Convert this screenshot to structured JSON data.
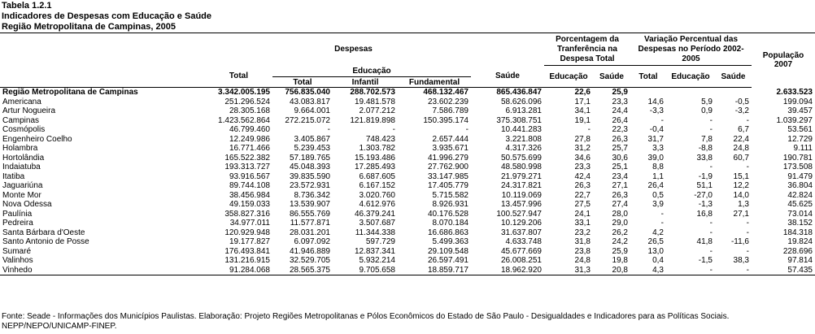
{
  "title": {
    "line1": "Tabela 1.2.1",
    "line2": "Indicadores de Despesas com Educação e Saúde",
    "line3": "Região Metropolitana de Campinas, 2005"
  },
  "headers": {
    "despesas": "Despesas",
    "porcentagem": "Porcentagem da Tranferência na Despesa Total",
    "variacao": "Variação Percentual das Despesas no Período 2002-2005",
    "populacao": "População 2007",
    "total": "Total",
    "educacao": "Educação",
    "ed_total": "Total",
    "ed_infantil": "Infantil",
    "ed_fundamental": "Fundamental",
    "saude": "Saúde",
    "p_educacao": "Educação",
    "p_saude": "Saúde",
    "v_total": "Total",
    "v_educacao": "Educação",
    "v_saude": "Saúde"
  },
  "rows": [
    [
      "Região Metropolitana de Campinas",
      "3.342.005.195",
      "756.835.040",
      "288.702.573",
      "468.132.467",
      "865.436.847",
      "22,6",
      "25,9",
      "",
      "",
      "",
      "2.633.523"
    ],
    [
      "Americana",
      "251.296.524",
      "43.083.817",
      "19.481.578",
      "23.602.239",
      "58.626.096",
      "17,1",
      "23,3",
      "14,6",
      "5,9",
      "-0,5",
      "199.094"
    ],
    [
      "Artur Nogueira",
      "28.305.168",
      "9.664.001",
      "2.077.212",
      "7.586.789",
      "6.913.281",
      "34,1",
      "24,4",
      "-3,3",
      "0,9",
      "-3,2",
      "39.457"
    ],
    [
      "Campinas",
      "1.423.562.864",
      "272.215.072",
      "121.819.898",
      "150.395.174",
      "375.308.751",
      "19,1",
      "26,4",
      "-",
      "-",
      "-",
      "1.039.297"
    ],
    [
      "Cosmópolis",
      "46.799.460",
      "-",
      "-",
      "-",
      "10.441.283",
      "-",
      "22,3",
      "-0,4",
      "-",
      "6,7",
      "53.561"
    ],
    [
      "Engenheiro Coelho",
      "12.249.986",
      "3.405.867",
      "748.423",
      "2.657.444",
      "3.221.808",
      "27,8",
      "26,3",
      "31,7",
      "7,8",
      "22,4",
      "12.729"
    ],
    [
      "Holambra",
      "16.771.466",
      "5.239.453",
      "1.303.782",
      "3.935.671",
      "4.317.326",
      "31,2",
      "25,7",
      "3,3",
      "-8,8",
      "24,8",
      "9.111"
    ],
    [
      "Hortolândia",
      "165.522.382",
      "57.189.765",
      "15.193.486",
      "41.996.279",
      "50.575.699",
      "34,6",
      "30,6",
      "39,0",
      "33,8",
      "60,7",
      "190.781"
    ],
    [
      "Indaiatuba",
      "193.313.727",
      "45.048.393",
      "17.285.493",
      "27.762.900",
      "48.580.998",
      "23,3",
      "25,1",
      "8,8",
      "-",
      "-",
      "173.508"
    ],
    [
      "Itatiba",
      "93.916.567",
      "39.835.590",
      "6.687.605",
      "33.147.985",
      "21.979.271",
      "42,4",
      "23,4",
      "1,1",
      "-1,9",
      "15,1",
      "91.479"
    ],
    [
      "Jaguariúna",
      "89.744.108",
      "23.572.931",
      "6.167.152",
      "17.405.779",
      "24.317.821",
      "26,3",
      "27,1",
      "26,4",
      "51,1",
      "12,2",
      "36.804"
    ],
    [
      "Monte Mor",
      "38.456.984",
      "8.736.342",
      "3.020.760",
      "5.715.582",
      "10.119.069",
      "22,7",
      "26,3",
      "0,5",
      "-27,0",
      "14,0",
      "42.824"
    ],
    [
      "Nova Odessa",
      "49.159.033",
      "13.539.907",
      "4.612.976",
      "8.926.931",
      "13.457.996",
      "27,5",
      "27,4",
      "3,9",
      "-1,3",
      "1,3",
      "45.625"
    ],
    [
      "Paulínia",
      "358.827.316",
      "86.555.769",
      "46.379.241",
      "40.176.528",
      "100.527.947",
      "24,1",
      "28,0",
      "-",
      "16,8",
      "27,1",
      "73.014"
    ],
    [
      "Pedreira",
      "34.977.011",
      "11.577.871",
      "3.507.687",
      "8.070.184",
      "10.129.206",
      "33,1",
      "29,0",
      "-",
      "-",
      "-",
      "38.152"
    ],
    [
      "Santa Bárbara d'Oeste",
      "120.929.948",
      "28.031.201",
      "11.344.338",
      "16.686.863",
      "31.637.807",
      "23,2",
      "26,2",
      "4,2",
      "-",
      "-",
      "184.318"
    ],
    [
      "Santo Antonio de Posse",
      "19.177.827",
      "6.097.092",
      "597.729",
      "5.499.363",
      "4.633.748",
      "31,8",
      "24,2",
      "26,5",
      "41,8",
      "-11,6",
      "19.824"
    ],
    [
      "Sumaré",
      "176.493.841",
      "41.946.889",
      "12.837.341",
      "29.109.548",
      "45.677.669",
      "23,8",
      "25,9",
      "13,0",
      "-",
      "-",
      "228.696"
    ],
    [
      "Valinhos",
      "131.216.915",
      "32.529.705",
      "5.932.214",
      "26.597.491",
      "26.008.251",
      "24,8",
      "19,8",
      "0,4",
      "-1,5",
      "38,3",
      "97.814"
    ],
    [
      "Vinhedo",
      "91.284.068",
      "28.565.375",
      "9.705.658",
      "18.859.717",
      "18.962.920",
      "31,3",
      "20,8",
      "4,3",
      "-",
      "-",
      "57.435"
    ]
  ],
  "source": "Fonte: Seade - Informações dos Municípios Paulistas. Elaboração: Projeto Regiões Metropolitanas e Pólos Econômicos do Estado de São Paulo - Desigualdades e Indicadores para as Políticas Sociais. NEPP/NEPO/UNICAMP-FINEP."
}
